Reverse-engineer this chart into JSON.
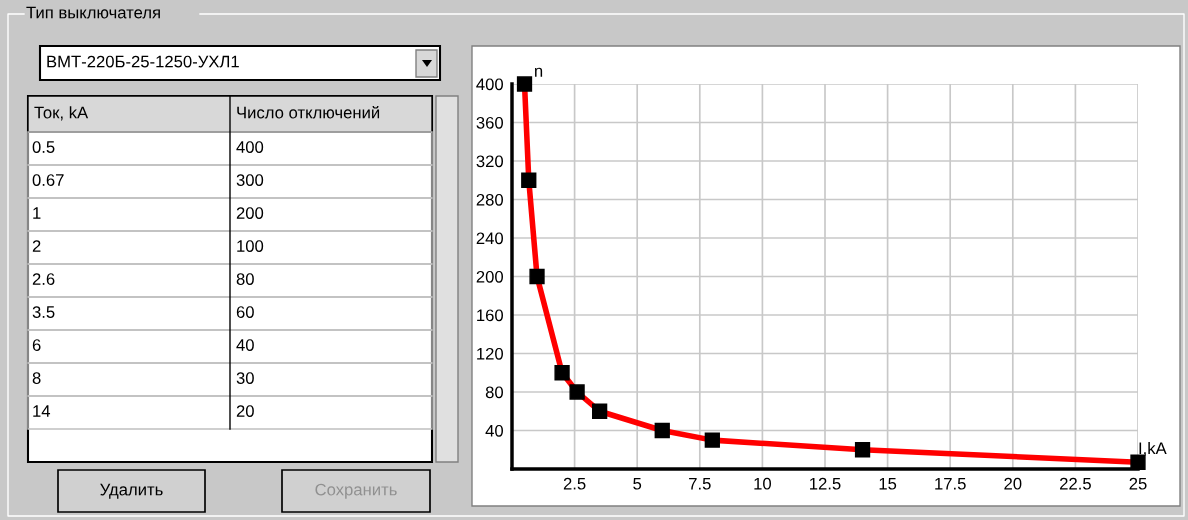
{
  "chart_data": {
    "type": "line",
    "title": "Тип выключателя",
    "subtitle": "ВМТ-220Б-25-1250-УХЛ1",
    "xlabel": "I,kA",
    "ylabel": "n",
    "x": [
      0.5,
      0.67,
      1,
      2,
      2.6,
      3.5,
      6,
      8,
      14,
      25
    ],
    "series": [
      {
        "color": "#ff0000",
        "values": [
          400,
          300,
          200,
          100,
          80,
          60,
          40,
          30,
          20,
          7
        ]
      }
    ],
    "xlim": [
      0,
      25
    ],
    "ylim": [
      0,
      400
    ],
    "xticks": [
      2.5,
      5,
      7.5,
      10,
      12.5,
      15,
      17.5,
      20,
      22.5,
      25
    ],
    "yticks": [
      40,
      80,
      120,
      160,
      200,
      240,
      280,
      320,
      360,
      400
    ],
    "grid": true,
    "marker": "square",
    "line_style": "solid",
    "legend": false,
    "annotations": [
      "Ток, kA",
      "Число отключений",
      "Удалить",
      "Сохранить",
      "0.5",
      "400",
      "0.67",
      "300",
      "1",
      "200",
      "2",
      "100",
      "2.6",
      "80",
      "3.5",
      "60",
      "6",
      "40",
      "8",
      "30",
      "14",
      "20"
    ]
  }
}
